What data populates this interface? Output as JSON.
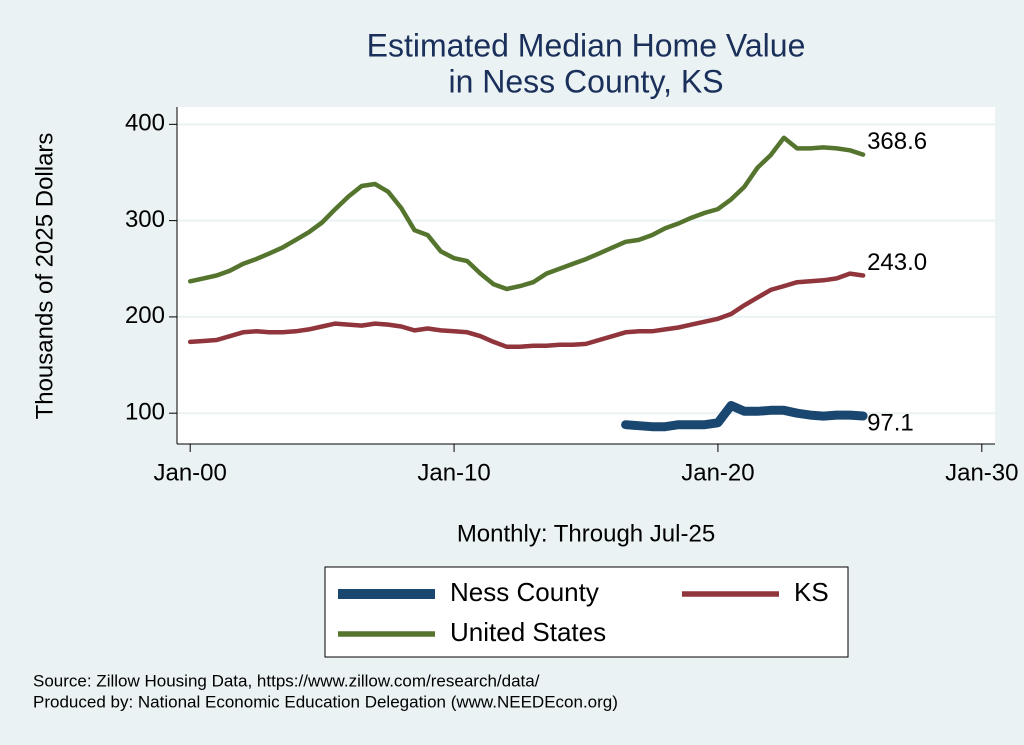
{
  "chart_data": {
    "type": "line",
    "title": [
      "Estimated Median Home Value",
      "in Ness County, KS"
    ],
    "x_label": "Monthly: Through Jul-25",
    "y_label": "Thousands of 2025 Dollars",
    "source": "Source: Zillow Housing Data, https://www.zillow.com/research/data/",
    "credit": "Produced by: National Economic Education Delegation (www.NEEDEcon.org)",
    "x": [
      "2000-01",
      "2000-07",
      "2001-01",
      "2001-07",
      "2002-01",
      "2002-07",
      "2003-01",
      "2003-07",
      "2004-01",
      "2004-07",
      "2005-01",
      "2005-07",
      "2006-01",
      "2006-07",
      "2007-01",
      "2007-07",
      "2008-01",
      "2008-07",
      "2009-01",
      "2009-07",
      "2010-01",
      "2010-07",
      "2011-01",
      "2011-07",
      "2012-01",
      "2012-07",
      "2013-01",
      "2013-07",
      "2014-01",
      "2014-07",
      "2015-01",
      "2015-07",
      "2016-01",
      "2016-07",
      "2017-01",
      "2017-07",
      "2018-01",
      "2018-07",
      "2019-01",
      "2019-07",
      "2020-01",
      "2020-07",
      "2021-01",
      "2021-07",
      "2022-01",
      "2022-07",
      "2023-01",
      "2023-07",
      "2024-01",
      "2024-07",
      "2025-01",
      "2025-07"
    ],
    "series": [
      {
        "name": "Ness County",
        "color": "#1a476f",
        "values": [
          null,
          null,
          null,
          null,
          null,
          null,
          null,
          null,
          null,
          null,
          null,
          null,
          null,
          null,
          null,
          null,
          null,
          null,
          null,
          null,
          null,
          null,
          null,
          null,
          null,
          null,
          null,
          null,
          null,
          null,
          null,
          null,
          null,
          88,
          87,
          86,
          86,
          88,
          88,
          88,
          90,
          108,
          102,
          102,
          103,
          103,
          100,
          98,
          97,
          98,
          98,
          97.1
        ]
      },
      {
        "name": "KS",
        "color": "#90353b",
        "values": [
          174,
          175,
          176,
          180,
          184,
          185,
          184,
          184,
          185,
          187,
          190,
          193,
          192,
          191,
          193,
          192,
          190,
          186,
          188,
          186,
          185,
          184,
          180,
          174,
          169,
          169,
          170,
          170,
          171,
          171,
          172,
          176,
          180,
          184,
          185,
          185,
          187,
          189,
          192,
          195,
          198,
          203,
          212,
          220,
          228,
          232,
          236,
          237,
          238,
          240,
          245,
          243
        ],
        "value_labels": [
          null,
          null,
          null,
          null,
          null,
          null,
          null,
          null,
          null,
          null,
          null,
          null,
          null,
          null,
          null,
          null,
          null,
          null,
          null,
          null,
          null,
          null,
          null,
          null,
          null,
          null,
          null,
          null,
          null,
          null,
          null,
          null,
          null,
          null,
          null,
          null,
          null,
          null,
          null,
          null,
          null,
          null,
          null,
          null,
          null,
          null,
          null,
          null,
          null,
          null,
          null,
          "243.0"
        ]
      },
      {
        "name": "United States",
        "color": "#55752f",
        "values": [
          237,
          240,
          243,
          248,
          255,
          260,
          266,
          272,
          280,
          288,
          298,
          312,
          325,
          336,
          338,
          330,
          313,
          290,
          285,
          268,
          261,
          258,
          245,
          234,
          229,
          232,
          236,
          245,
          250,
          255,
          260,
          266,
          272,
          278,
          280,
          285,
          292,
          297,
          303,
          308,
          312,
          322,
          335,
          355,
          368,
          386,
          375,
          375,
          376,
          375,
          373,
          368.6
        ]
      }
    ],
    "xlim": [
      "1999-07",
      "2030-07"
    ],
    "xticks": [
      {
        "value": "2000-01",
        "label": "Jan-00"
      },
      {
        "value": "2010-01",
        "label": "Jan-10"
      },
      {
        "value": "2020-01",
        "label": "Jan-20"
      },
      {
        "value": "2030-01",
        "label": "Jan-30"
      }
    ],
    "ylim": [
      68,
      418
    ],
    "yticks": [
      100,
      200,
      300,
      400
    ],
    "grid": true
  }
}
